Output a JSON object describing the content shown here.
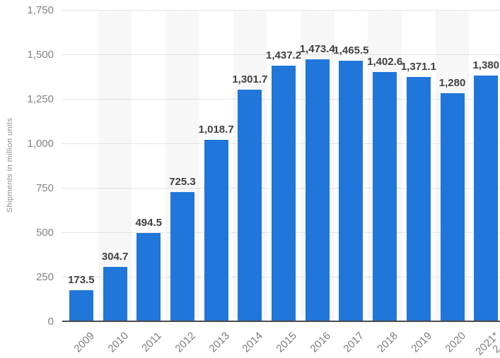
{
  "chart_data": {
    "type": "bar",
    "title": "",
    "xlabel": "",
    "ylabel": "Shipments in million units",
    "ylim": [
      0,
      1750
    ],
    "grid": true,
    "legend": false,
    "yticks": [
      {
        "value": 0,
        "label": "0"
      },
      {
        "value": 250,
        "label": "250"
      },
      {
        "value": 500,
        "label": "500"
      },
      {
        "value": 750,
        "label": "750"
      },
      {
        "value": 1000,
        "label": "1,000"
      },
      {
        "value": 1250,
        "label": "1,250"
      },
      {
        "value": 1500,
        "label": "1,500"
      },
      {
        "value": 1750,
        "label": "1,750"
      }
    ],
    "categories": [
      "2009",
      "2010",
      "2011",
      "2012",
      "2013",
      "2014",
      "2015",
      "2016",
      "2017",
      "2018",
      "2019",
      "2020",
      "2021*"
    ],
    "values": [
      173.5,
      304.7,
      494.5,
      725.3,
      1018.7,
      1301.7,
      1437.2,
      1473.4,
      1465.5,
      1402.6,
      1371.1,
      1280,
      1380
    ],
    "value_labels": [
      "173.5",
      "304.7",
      "494.5",
      "725.3",
      "1,018.7",
      "1,301.7",
      "1,437.2",
      "1,473.4",
      "1,465.5",
      "1,402.6",
      "1,371.1",
      "1,280",
      "1,380"
    ],
    "banded_columns": [
      1,
      3,
      5,
      7,
      9,
      11
    ],
    "colors": {
      "bar": "#2076d9",
      "column_band": "#f7f7f7",
      "gridline": "#cbcbcb",
      "axis_line": "#4b4b4b",
      "tick_label": "#828282",
      "value_label": "#404040",
      "background": "#ffffff"
    },
    "cropped_label_fragment": "2"
  }
}
